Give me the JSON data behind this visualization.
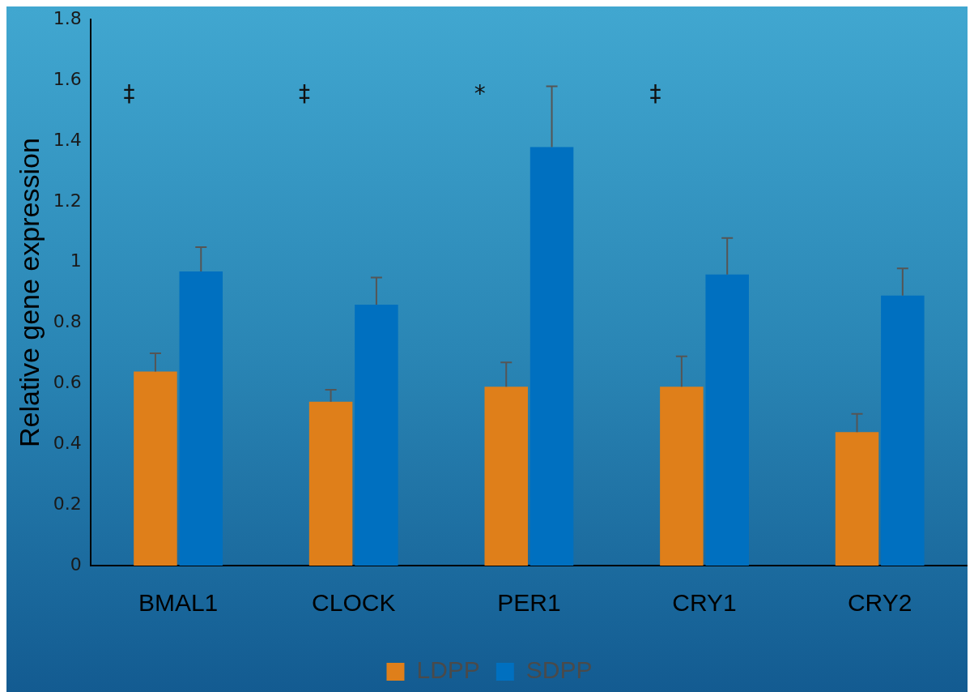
{
  "chart_data": {
    "type": "bar",
    "ylabel": "Relative gene expression",
    "categories": [
      "BMAL1",
      "CLOCK",
      "PER1",
      "CRY1",
      "CRY2"
    ],
    "series": [
      {
        "name": "LDPP",
        "color": "#df7f1a",
        "values": [
          0.64,
          0.54,
          0.59,
          0.59,
          0.44
        ],
        "errors": [
          [
            0.64,
            0.7
          ],
          [
            0.54,
            0.58
          ],
          [
            0.59,
            0.67
          ],
          [
            0.59,
            0.69
          ],
          [
            0.44,
            0.5
          ]
        ]
      },
      {
        "name": "SDPP",
        "color": "#0070c0",
        "values": [
          0.97,
          0.86,
          1.38,
          0.96,
          0.89
        ],
        "errors": [
          [
            0.97,
            1.05
          ],
          [
            0.86,
            0.95
          ],
          [
            1.38,
            1.58
          ],
          [
            0.96,
            1.08
          ],
          [
            0.89,
            0.98
          ]
        ]
      }
    ],
    "ylim": [
      0,
      1.8
    ],
    "yticks": [
      0,
      0.2,
      0.4,
      0.6,
      0.8,
      1,
      1.2,
      1.4,
      1.6,
      1.8
    ],
    "grid": false,
    "legend": "bottom",
    "annotations": [
      "‡",
      "‡",
      "*",
      "‡"
    ]
  }
}
